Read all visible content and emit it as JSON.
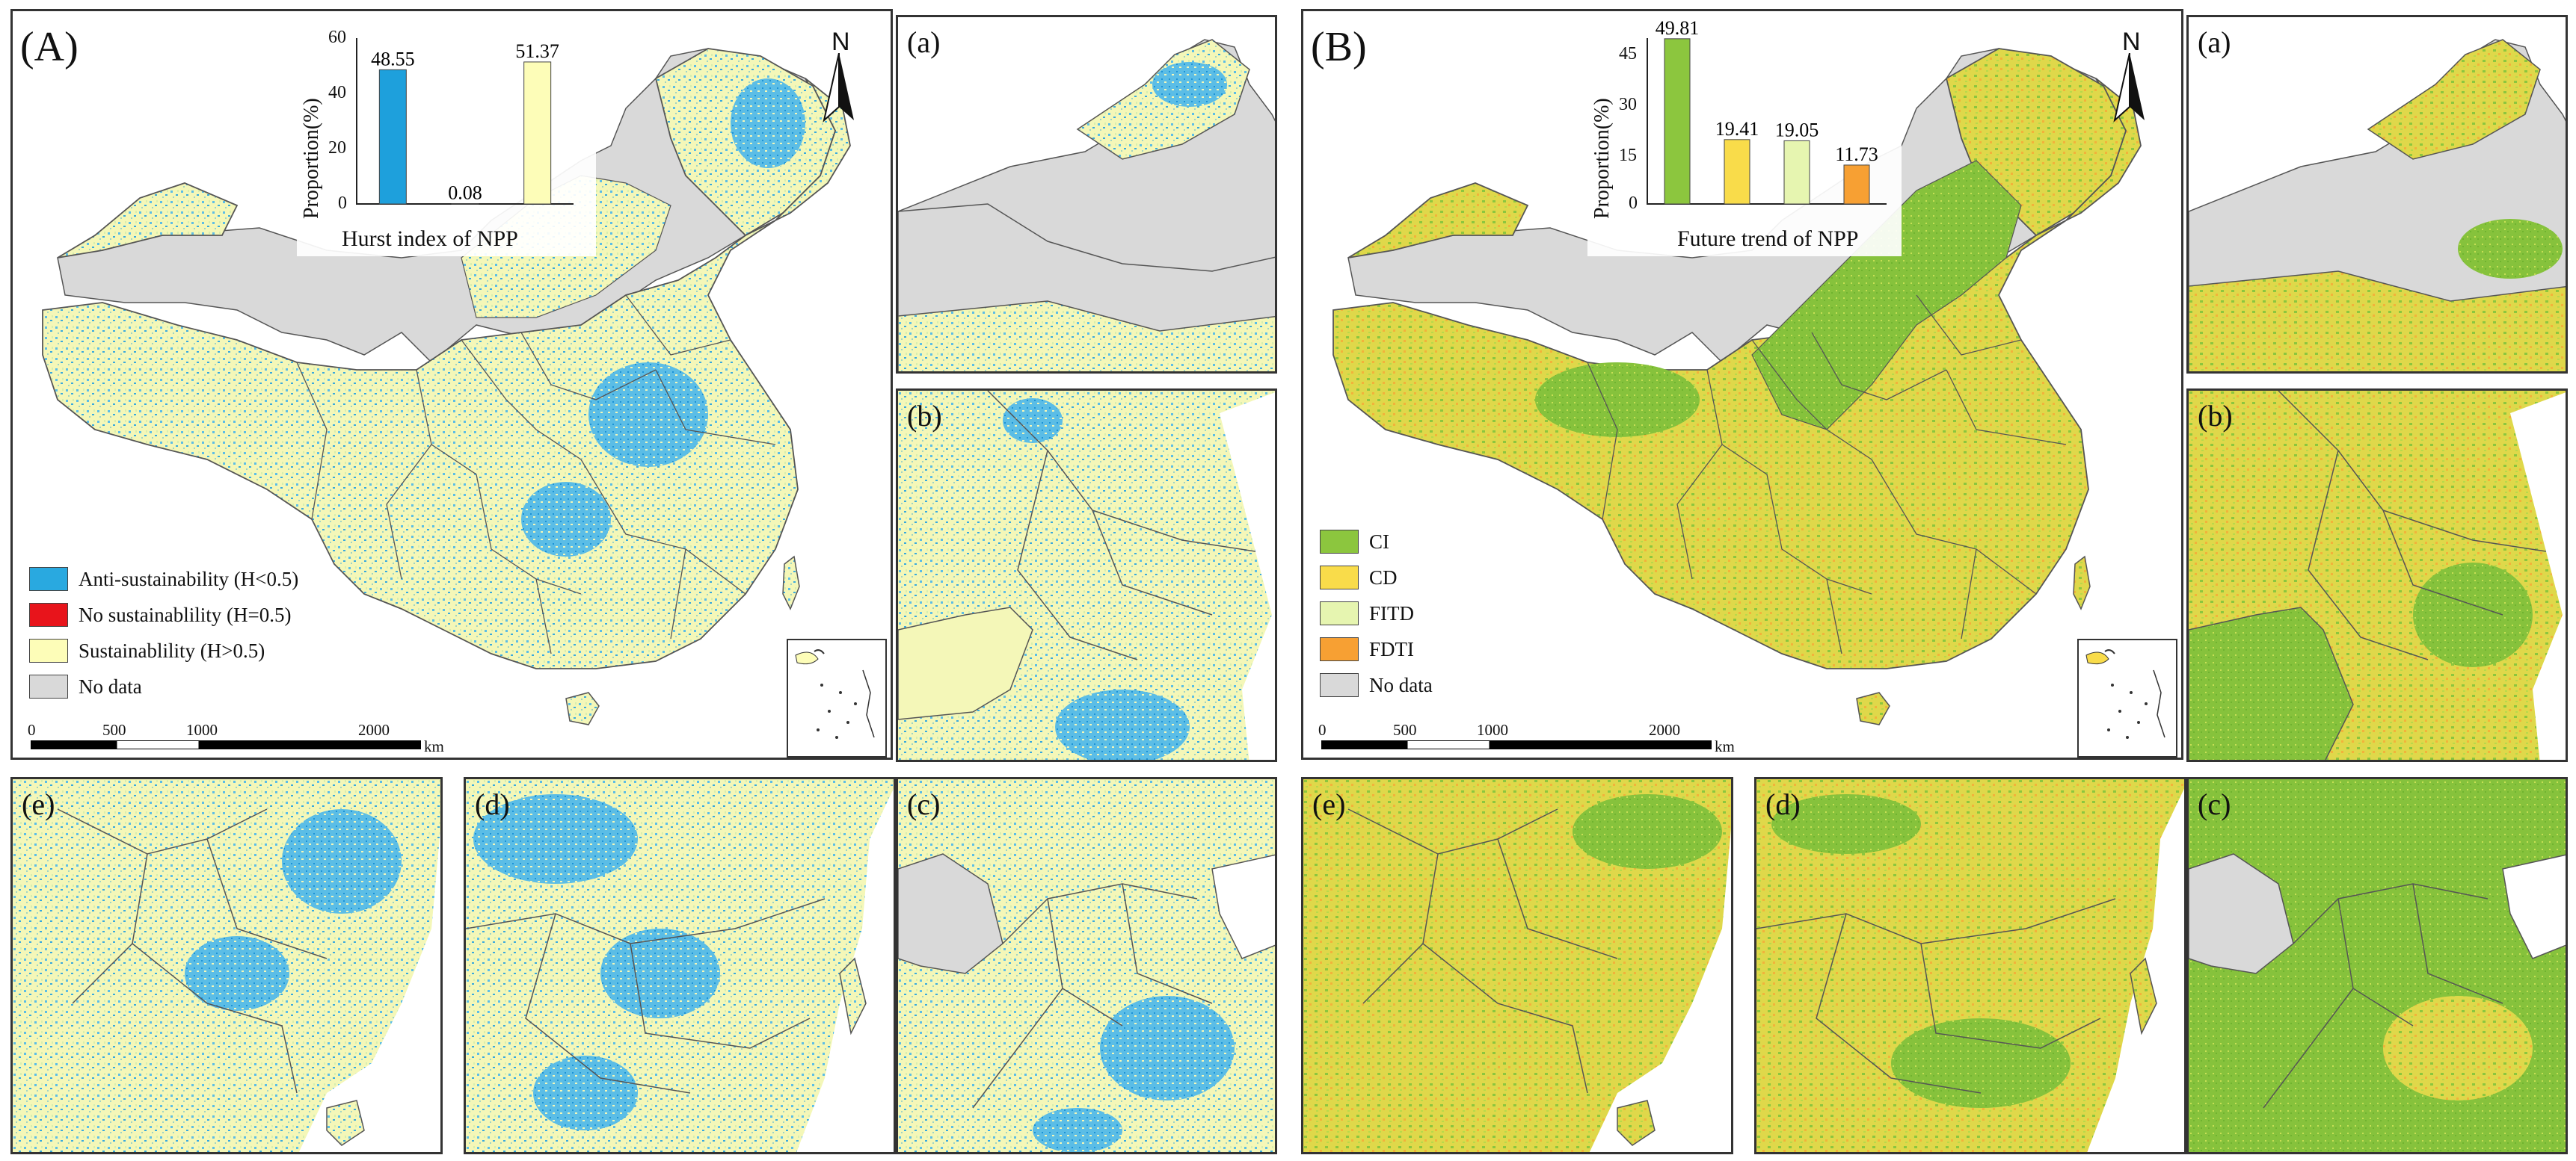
{
  "panel_A": {
    "label": "(A)",
    "chart": {
      "xlabel": "Hurst index of NPP",
      "ylabel": "Proportion(%)",
      "yticks": [
        "60",
        "40",
        "20",
        "0"
      ]
    },
    "legend": [
      {
        "label": "Anti-sustainability (H<0.5)",
        "color": "#29a9e0"
      },
      {
        "label": "No sustainablility (H=0.5)",
        "color": "#e8141b"
      },
      {
        "label": "Sustainablility (H>0.5)",
        "color": "#fdfdb8"
      },
      {
        "label": "No data",
        "color": "#d9d9d9"
      }
    ],
    "scale": {
      "t0": "0",
      "t1": "500",
      "t2": "1000",
      "t3": "2000",
      "unit": "km"
    },
    "north": "N"
  },
  "panel_B": {
    "label": "(B)",
    "chart": {
      "xlabel": "Future trend of NPP",
      "ylabel": "Proportion(%)",
      "yticks": [
        "45",
        "30",
        "15",
        "0"
      ]
    },
    "legend": [
      {
        "label": "CI",
        "color": "#8cc63e"
      },
      {
        "label": "CD",
        "color": "#f9dc4a"
      },
      {
        "label": "FITD",
        "color": "#e6f5b0"
      },
      {
        "label": "FDTI",
        "color": "#f7a033"
      },
      {
        "label": "No data",
        "color": "#d9d9d9"
      }
    ],
    "scale": {
      "t0": "0",
      "t1": "500",
      "t2": "1000",
      "t3": "2000",
      "unit": "km"
    },
    "north": "N"
  },
  "sub_labels": {
    "a": "(a)",
    "b": "(b)",
    "c": "(c)",
    "d": "(d)",
    "e": "(e)"
  },
  "chart_data": [
    {
      "type": "bar",
      "categories": [
        "H<0.5",
        "H=0.5",
        "H>0.5"
      ],
      "values": [
        48.55,
        0.08,
        51.37
      ],
      "labels": [
        "48.55",
        "0.08",
        "51.37"
      ],
      "colors": [
        "#1ea0dc",
        "#e8141b",
        "#fdfdb8"
      ],
      "xlabel": "Hurst index of NPP",
      "ylabel": "Proportion(%)",
      "ylim": [
        0,
        60
      ]
    },
    {
      "type": "bar",
      "categories": [
        "CI",
        "CD",
        "FITD",
        "FDTI"
      ],
      "values": [
        49.81,
        19.41,
        19.05,
        11.73
      ],
      "labels": [
        "49.81",
        "19.41",
        "19.05",
        "11.73"
      ],
      "colors": [
        "#8cc63e",
        "#f9dc4a",
        "#e6f5b0",
        "#f7a033"
      ],
      "xlabel": "Future trend of NPP",
      "ylabel": "Proportion(%)",
      "ylim": [
        0,
        50
      ]
    }
  ]
}
